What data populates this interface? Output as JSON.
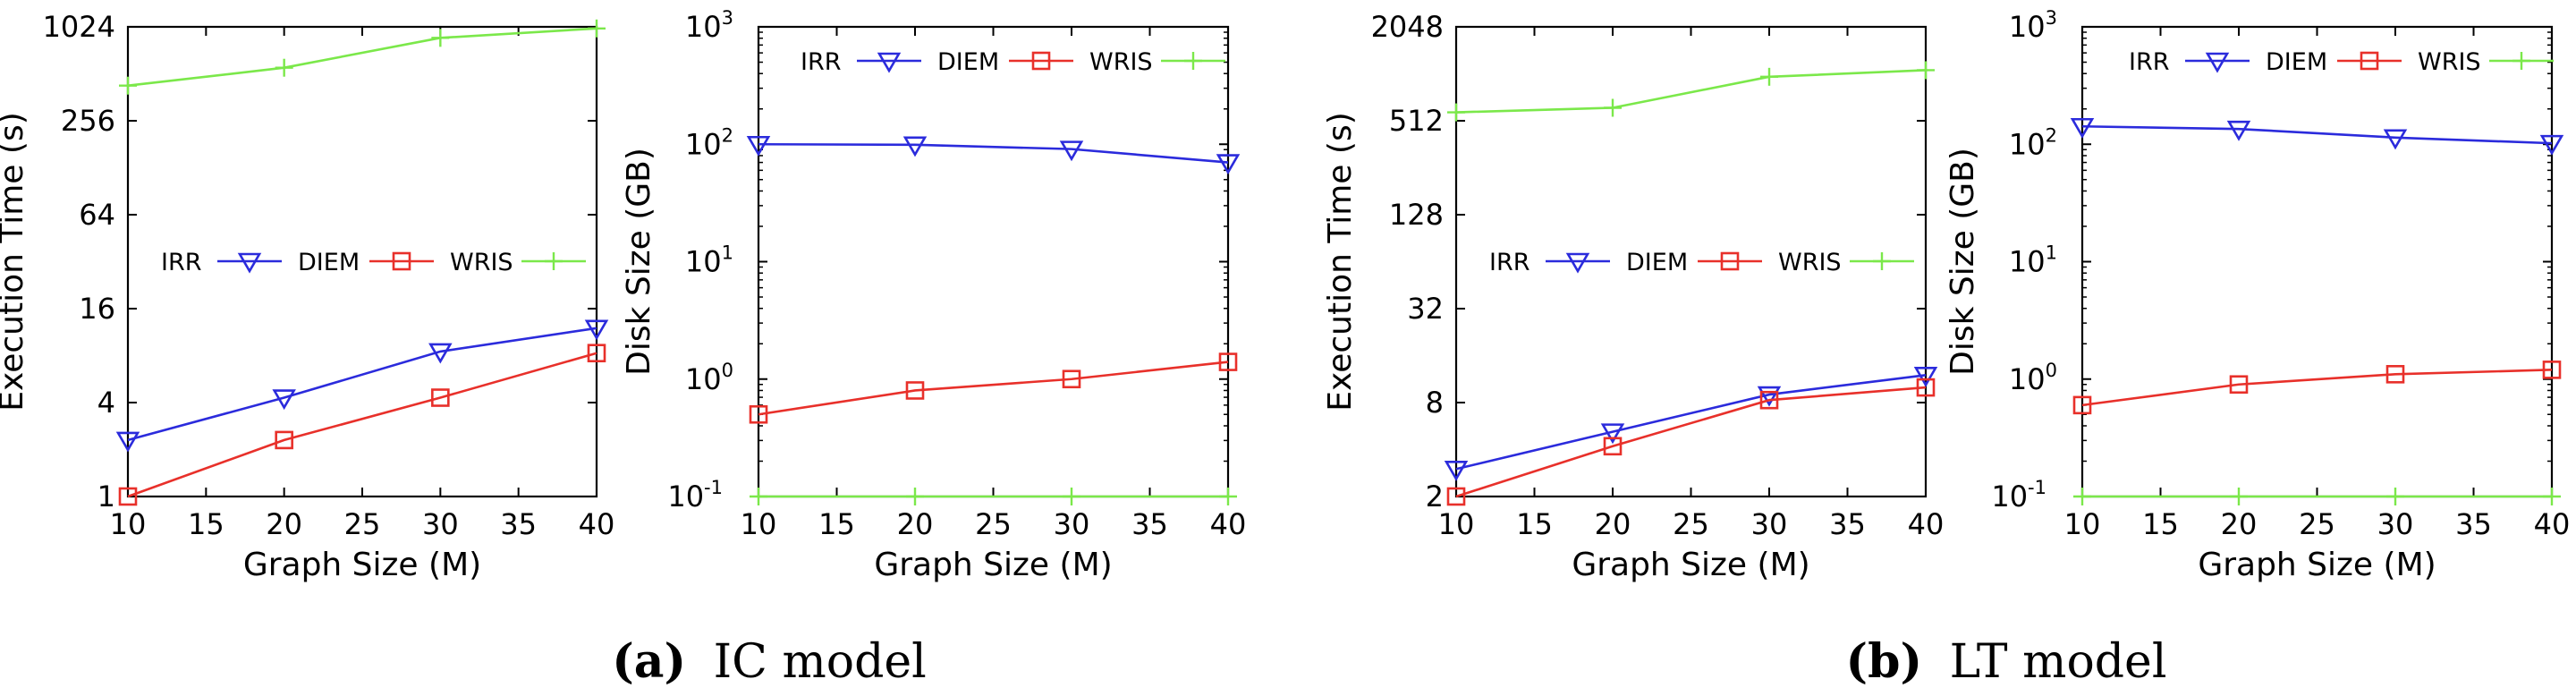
{
  "colors": {
    "IRR": "#2b2bdc",
    "DIEM": "#e8302a",
    "WRIS": "#7be84a"
  },
  "chart_data": [
    {
      "type": "line",
      "id": "ic_time",
      "yscale": "log2",
      "x": [
        10,
        20,
        30,
        40
      ],
      "xlim": [
        10,
        40
      ],
      "xticks": [
        "10",
        "15",
        "20",
        "25",
        "30",
        "35",
        "40"
      ],
      "ylim": [
        1,
        1024
      ],
      "yticks": [
        "1",
        "4",
        "16",
        "64",
        "256",
        "1024"
      ],
      "xlabel": "Graph Size (M)",
      "ylabel": "Execution Time (s)",
      "legend_position": "middle",
      "series": [
        {
          "name": "IRR",
          "marker": "triangle-down",
          "values": [
            2.3,
            4.3,
            8.5,
            12
          ]
        },
        {
          "name": "DIEM",
          "marker": "square",
          "values": [
            1.0,
            2.3,
            4.3,
            8.3
          ]
        },
        {
          "name": "WRIS",
          "marker": "plus",
          "values": [
            430,
            560,
            870,
            1000
          ]
        }
      ]
    },
    {
      "type": "line",
      "id": "ic_disk",
      "yscale": "log10",
      "x": [
        10,
        20,
        30,
        40
      ],
      "xlim": [
        10,
        40
      ],
      "xticks": [
        "10",
        "15",
        "20",
        "25",
        "30",
        "35",
        "40"
      ],
      "ylim": [
        0.1,
        1000
      ],
      "yticks": [
        {
          "base": "10",
          "exp": "-1"
        },
        {
          "base": "10",
          "exp": "0"
        },
        {
          "base": "10",
          "exp": "1"
        },
        {
          "base": "10",
          "exp": "2"
        },
        {
          "base": "10",
          "exp": "3"
        }
      ],
      "xlabel": "Graph Size (M)",
      "ylabel": "Disk Size (GB)",
      "legend_position": "top",
      "series": [
        {
          "name": "IRR",
          "marker": "triangle-down",
          "values": [
            100,
            99,
            91,
            70
          ]
        },
        {
          "name": "DIEM",
          "marker": "square",
          "values": [
            0.5,
            0.8,
            1.0,
            1.4
          ]
        },
        {
          "name": "WRIS",
          "marker": "plus",
          "values": [
            0.1,
            0.1,
            0.1,
            0.1
          ]
        }
      ]
    },
    {
      "type": "line",
      "id": "lt_time",
      "yscale": "log2",
      "x": [
        10,
        20,
        30,
        40
      ],
      "xlim": [
        10,
        40
      ],
      "xticks": [
        "10",
        "15",
        "20",
        "25",
        "30",
        "35",
        "40"
      ],
      "ylim": [
        2,
        2048
      ],
      "yticks": [
        "2",
        "8",
        "32",
        "128",
        "512",
        "2048"
      ],
      "xlabel": "Graph Size (M)",
      "ylabel": "Execution Time (s)",
      "legend_position": "middle",
      "series": [
        {
          "name": "IRR",
          "marker": "triangle-down",
          "values": [
            3.0,
            5.2,
            9.0,
            12
          ]
        },
        {
          "name": "DIEM",
          "marker": "square",
          "values": [
            2.0,
            4.2,
            8.3,
            10
          ]
        },
        {
          "name": "WRIS",
          "marker": "plus",
          "values": [
            580,
            620,
            980,
            1080
          ]
        }
      ]
    },
    {
      "type": "line",
      "id": "lt_disk",
      "yscale": "log10",
      "x": [
        10,
        20,
        30,
        40
      ],
      "xlim": [
        10,
        40
      ],
      "xticks": [
        "10",
        "15",
        "20",
        "25",
        "30",
        "35",
        "40"
      ],
      "ylim": [
        0.1,
        1000
      ],
      "yticks": [
        {
          "base": "10",
          "exp": "-1"
        },
        {
          "base": "10",
          "exp": "0"
        },
        {
          "base": "10",
          "exp": "1"
        },
        {
          "base": "10",
          "exp": "2"
        },
        {
          "base": "10",
          "exp": "3"
        }
      ],
      "xlabel": "Graph Size (M)",
      "ylabel": "Disk Size (GB)",
      "legend_position": "top",
      "series": [
        {
          "name": "IRR",
          "marker": "triangle-down",
          "values": [
            142,
            135,
            114,
            102
          ]
        },
        {
          "name": "DIEM",
          "marker": "square",
          "values": [
            0.6,
            0.9,
            1.1,
            1.2
          ]
        },
        {
          "name": "WRIS",
          "marker": "plus",
          "values": [
            0.1,
            0.1,
            0.1,
            0.1
          ]
        }
      ]
    }
  ],
  "captions": [
    {
      "label": "(a)",
      "text": "IC model"
    },
    {
      "label": "(b)",
      "text": "LT model"
    }
  ]
}
